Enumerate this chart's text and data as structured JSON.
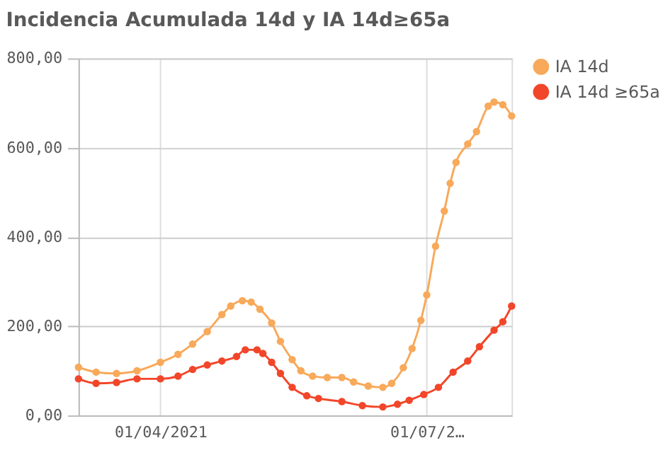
{
  "chart_data": {
    "type": "line",
    "title": "Incidencia Acumulada 14d y IA 14d≥65a",
    "xlim": [
      "2021-03-04",
      "2021-07-30"
    ],
    "xticks": [
      {
        "value": "2021-04-01",
        "label": "01/04/2021"
      },
      {
        "value": "2021-07-01",
        "label": "01/07/2…"
      }
    ],
    "ylim": [
      0,
      800
    ],
    "yticks": [
      {
        "value": 0,
        "label": "0,00"
      },
      {
        "value": 200,
        "label": "200,00"
      },
      {
        "value": 400,
        "label": "400,00"
      },
      {
        "value": 600,
        "label": "600,00"
      },
      {
        "value": 800,
        "label": "800,00"
      }
    ],
    "grid": true,
    "legend": "top right",
    "marker": "circle",
    "line_style": "solid",
    "series": [
      {
        "name": "IA 14d",
        "color": "#f8a95a",
        "x": [
          "2021-03-04",
          "2021-03-10",
          "2021-03-17",
          "2021-03-24",
          "2021-04-01",
          "2021-04-07",
          "2021-04-12",
          "2021-04-17",
          "2021-04-22",
          "2021-04-25",
          "2021-04-29",
          "2021-05-02",
          "2021-05-05",
          "2021-05-09",
          "2021-05-12",
          "2021-05-16",
          "2021-05-19",
          "2021-05-23",
          "2021-05-28",
          "2021-06-02",
          "2021-06-06",
          "2021-06-11",
          "2021-06-16",
          "2021-06-19",
          "2021-06-23",
          "2021-06-26",
          "2021-06-29",
          "2021-07-01",
          "2021-07-04",
          "2021-07-07",
          "2021-07-09",
          "2021-07-11",
          "2021-07-15",
          "2021-07-18",
          "2021-07-22",
          "2021-07-24",
          "2021-07-27",
          "2021-07-30"
        ],
        "values": [
          108,
          97,
          94,
          100,
          119,
          137,
          160,
          188,
          226,
          245,
          257,
          254,
          238,
          207,
          166,
          125,
          100,
          88,
          85,
          85,
          75,
          66,
          63,
          72,
          107,
          150,
          213,
          270,
          379,
          458,
          520,
          567,
          608,
          636,
          693,
          702,
          696,
          671
        ]
      },
      {
        "name": "IA 14d ≥65a",
        "color": "#f2462a",
        "x": [
          "2021-03-04",
          "2021-03-10",
          "2021-03-17",
          "2021-03-24",
          "2021-04-01",
          "2021-04-07",
          "2021-04-12",
          "2021-04-17",
          "2021-04-22",
          "2021-04-27",
          "2021-04-30",
          "2021-05-04",
          "2021-05-06",
          "2021-05-09",
          "2021-05-12",
          "2021-05-16",
          "2021-05-21",
          "2021-05-25",
          "2021-06-02",
          "2021-06-09",
          "2021-06-16",
          "2021-06-21",
          "2021-06-25",
          "2021-06-30",
          "2021-07-05",
          "2021-07-10",
          "2021-07-15",
          "2021-07-19",
          "2021-07-24",
          "2021-07-27",
          "2021-07-30"
        ],
        "values": [
          82,
          72,
          74,
          82,
          82,
          88,
          103,
          113,
          122,
          132,
          147,
          147,
          139,
          119,
          94,
          63,
          44,
          38,
          31,
          22,
          19,
          25,
          34,
          47,
          63,
          97,
          122,
          154,
          191,
          210,
          245
        ]
      }
    ]
  }
}
